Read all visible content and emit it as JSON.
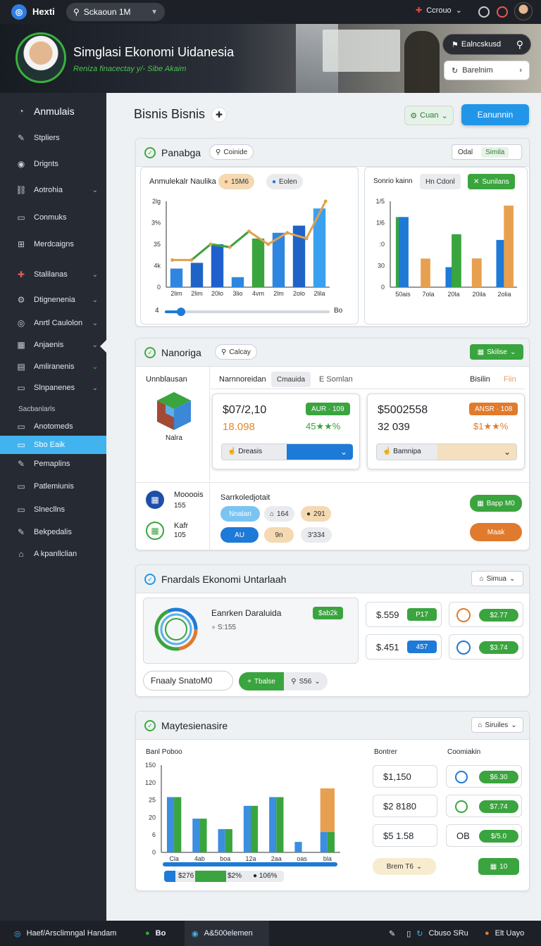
{
  "topbar": {
    "app_name": "Hexti",
    "search_value": "Sckaoun 1M",
    "account_label": "Ccrouo",
    "colors": {
      "bg": "#1d2127",
      "accent": "#2f7de1"
    }
  },
  "hero": {
    "title": "Simglasi Ekonomi Uidanesia",
    "subtitle": "Reniza finacectay y/- Sibe Akaim",
    "search_label": "Ealncskusd",
    "select_label": "Barelnim"
  },
  "sidebar": {
    "items": [
      {
        "label": "Anmulais",
        "icon": "bulb-icon"
      },
      {
        "label": "Stpliers",
        "icon": "edit-icon"
      },
      {
        "label": "Drignts",
        "icon": "pin-icon"
      },
      {
        "label": "Aotrohia",
        "icon": "link-icon"
      },
      {
        "label": "Conmuks",
        "icon": "doc-icon"
      },
      {
        "label": "Merdcaigns",
        "icon": "grid-icon"
      },
      {
        "label": "Stalilanas",
        "icon": "puzzle-icon"
      },
      {
        "label": "Dtignenenia",
        "icon": "gear-icon"
      },
      {
        "label": "Anrtl Caulolon",
        "icon": "target-icon"
      },
      {
        "label": "Anjaenis",
        "icon": "chart-icon"
      },
      {
        "label": "Amliranenis",
        "icon": "money-icon"
      },
      {
        "label": "Slnpanenes",
        "icon": "table-icon"
      },
      {
        "label": "Anotomeds",
        "icon": "box-icon"
      },
      {
        "label": "Sbo Eaik",
        "icon": "box-icon"
      },
      {
        "label": "Pemaplins",
        "icon": "edit-icon"
      },
      {
        "label": "Patlemiunis",
        "icon": "table-icon"
      },
      {
        "label": "Slnecllns",
        "icon": "box-icon"
      },
      {
        "label": "Bekpedalis",
        "icon": "book-icon"
      },
      {
        "label": "A kpanllclian",
        "icon": "home-icon"
      }
    ],
    "section_header": "Sacbanlarls"
  },
  "page": {
    "title": "Bisnis Bisnis",
    "ghost_button": "Cuan",
    "primary_button": "Eanunnin"
  },
  "panel1": {
    "title": "Panabga",
    "chip": "Coinide",
    "select_left": "Odal",
    "select_right": "Simila",
    "chart_a": {
      "title": "Anmulekalr Naulika",
      "chip1": "15M6",
      "chip2": "Eolen",
      "slider_left": "4",
      "slider_right": "Bo",
      "slider_value": 0.1
    },
    "chart_b": {
      "title": "Sonrio kainn",
      "chip1": "Hn Cdonl",
      "chip2": "Sunilans"
    }
  },
  "panel2": {
    "title": "Nanoriga",
    "chip": "Calcay",
    "chip_right": "Skilise",
    "left_label": "Unnblausan",
    "cube_label": "Nalra",
    "tabs": [
      "Narnnoreidan",
      "Cmauida",
      "E Somlan"
    ],
    "tab_right1": "Bisilin",
    "tab_right2": "Fiin",
    "card1": {
      "value1": "$07/2,10",
      "value2": "18.098",
      "badge": "AUR · 109",
      "delta": "45★★%",
      "select_left": "Dreasis"
    },
    "card2": {
      "value1": "$5002558",
      "value2": "32 039",
      "badge": "ANSR · 108",
      "delta": "$1★★%",
      "select_left": "Bamnipa"
    },
    "row1_label": "Moooois",
    "row1_value": "155",
    "row2_label": "Kafr",
    "row2_value": "105",
    "right_title": "Sarrkoledjotait",
    "chips": [
      "Nnalan",
      "164",
      "291",
      "AU",
      "9n",
      "3'334"
    ],
    "btn_green": "Bapp M0",
    "btn_orange": "Maak"
  },
  "panel3": {
    "title": "Fnardals Ekonomi Untarlaah",
    "select": "Simua",
    "card_title": "Eanrken Daraluida",
    "card_sub": "S:155",
    "card_badge": "$ab2k",
    "stats": [
      {
        "value": "$.559",
        "badge": "P17"
      },
      {
        "value": "$.451",
        "badge": "457"
      }
    ],
    "minis": [
      "$2.77",
      "$3.74"
    ],
    "bottom_input": "Fnaaly SnatoM0",
    "bottom_btn": "Tbalse",
    "bottom_select": "S56"
  },
  "panel4": {
    "title": "Maytesienasire",
    "select": "Siruiles",
    "chart_title": "Banl Poboo",
    "col1_header": "Bontrer",
    "col2_header": "Coomiakin",
    "values": [
      "$1,150",
      "$2 8180",
      "$5 1.58"
    ],
    "badges": [
      "$6.30",
      "$7.74",
      "$/5.0"
    ],
    "third_label": "OB",
    "footer_select": "Brem T6",
    "footer_btn": "10",
    "legend": [
      "$276",
      "$2%",
      "106%"
    ]
  },
  "bottombar": {
    "left_label": "Haef/Arsclimngal Handam",
    "mid_label": "Bo",
    "mid2_label": "A&500elemen",
    "right_label": "Cbuso SRu",
    "right2_label": "Elt Uayo"
  },
  "chart_data": [
    {
      "type": "bar",
      "title": "Anmulekalr Naulika",
      "categories": [
        "2lim",
        "2lim",
        "20lo",
        "3lio",
        "4vm",
        "2lm",
        "2olo",
        "2lila"
      ],
      "ytick_labels": [
        "0",
        "4k",
        "35",
        "3%",
        "2lg"
      ],
      "series": [
        {
          "values": [
            13,
            17,
            30,
            7,
            34,
            38,
            43,
            55
          ]
        }
      ],
      "line_values": [
        19,
        19,
        30,
        28,
        39,
        30,
        38,
        34,
        60
      ],
      "ylim": [
        0,
        60
      ]
    },
    {
      "type": "bar",
      "title": "Sonrio kainn",
      "categories": [
        "50ais",
        "7ola",
        "20la",
        "20ila",
        "2olia"
      ],
      "ytick_labels": [
        "0",
        "30",
        ":0",
        "1l6",
        "1/5"
      ],
      "series": [
        {
          "values": [
            49,
            0,
            0,
            20,
            0
          ]
        },
        {
          "values": [
            49,
            0,
            0,
            0,
            0
          ]
        },
        {
          "values": [
            0,
            20,
            0,
            0,
            0
          ]
        },
        {
          "values": [
            0,
            0,
            14,
            0,
            33
          ]
        },
        {
          "values": [
            0,
            0,
            37,
            0,
            0
          ]
        },
        {
          "values": [
            0,
            0,
            0,
            20,
            0
          ]
        },
        {
          "values": [
            0,
            0,
            0,
            0,
            57
          ]
        }
      ]
    },
    {
      "type": "bar",
      "title": "Banl Poboo",
      "categories": [
        "Cla",
        "4ab",
        "boa",
        "12a",
        "2aa",
        "oas",
        "bla"
      ],
      "ytick_labels": [
        "0",
        "6",
        "20",
        "25",
        "120",
        "150"
      ],
      "series": [
        {
          "values": [
            95,
            58,
            40,
            80,
            95,
            18,
            35
          ]
        },
        {
          "values": [
            95,
            58,
            40,
            80,
            95,
            0,
            35
          ]
        },
        {
          "values": [
            0,
            0,
            0,
            0,
            0,
            0,
            75
          ]
        }
      ]
    }
  ]
}
